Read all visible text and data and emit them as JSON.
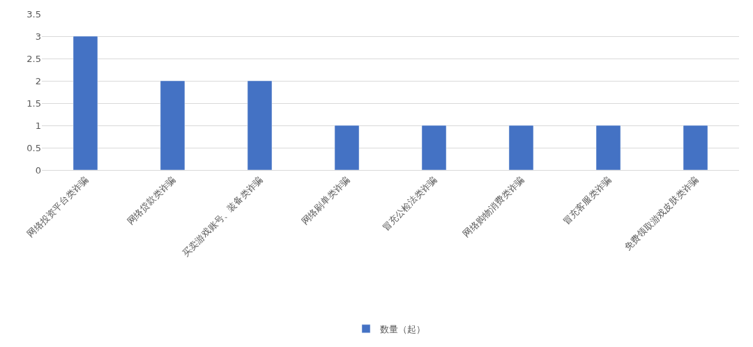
{
  "chart_data": {
    "type": "bar",
    "categories": [
      "网络投资平台类诈骗",
      "网络贷款类诈骗",
      "买卖游戏账号、装备类诈骗",
      "网络刷单类诈骗",
      "冒充公检法类诈骗",
      "网络购物消费类诈骗",
      "冒充客服类诈骗",
      "免费领取游戏皮肤类诈骗"
    ],
    "series": [
      {
        "name": "数量（起）",
        "color": "#4472c4",
        "values": [
          3,
          2,
          2,
          1,
          1,
          1,
          1,
          1
        ]
      }
    ],
    "ylim": [
      0,
      3.5
    ],
    "yticks": [
      0,
      0.5,
      1,
      1.5,
      2,
      2.5,
      3,
      3.5
    ],
    "grid": "y",
    "legend": "bottom"
  }
}
